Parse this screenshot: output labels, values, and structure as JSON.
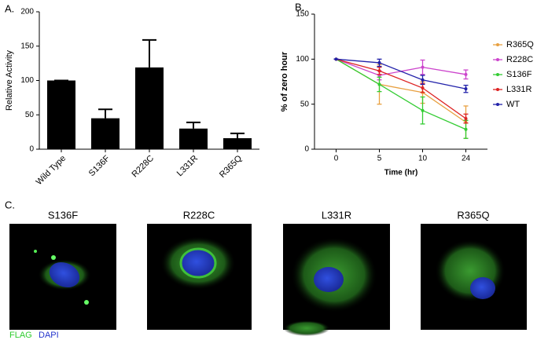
{
  "chart_data": [
    {
      "type": "bar",
      "label": "A.",
      "ylabel": "Relative Activity",
      "categories": [
        "Wild Type",
        "S136F",
        "R228C",
        "L331R",
        "R365Q"
      ],
      "values": [
        100,
        45,
        119,
        30,
        16
      ],
      "errors": [
        0,
        13,
        40,
        9,
        7
      ],
      "color": "#000000",
      "ylim": [
        0,
        200
      ],
      "yticks": [
        0,
        50,
        100,
        150,
        200
      ]
    },
    {
      "type": "line",
      "label": "B.",
      "xlabel": "Time (hr)",
      "ylabel": "% of zero hour",
      "categories": [
        "0",
        "5",
        "10",
        "24"
      ],
      "ylim": [
        0,
        150
      ],
      "yticks": [
        0,
        50,
        100,
        150
      ],
      "legend": "right",
      "series": [
        {
          "name": "R365Q",
          "color": "#e8a040",
          "values": [
            100,
            72,
            63,
            30
          ],
          "errors": [
            0,
            22,
            12,
            18
          ]
        },
        {
          "name": "R228C",
          "color": "#cc44cc",
          "values": [
            100,
            82,
            91,
            83
          ],
          "errors": [
            0,
            5,
            8,
            5
          ]
        },
        {
          "name": "S136F",
          "color": "#33cc33",
          "values": [
            100,
            72,
            43,
            22
          ],
          "errors": [
            0,
            8,
            15,
            10
          ]
        },
        {
          "name": "L331R",
          "color": "#dd2222",
          "values": [
            100,
            87,
            68,
            34
          ],
          "errors": [
            0,
            4,
            5,
            5
          ]
        },
        {
          "name": "WT",
          "color": "#2222aa",
          "values": [
            100,
            96,
            77,
            67
          ],
          "errors": [
            0,
            4,
            5,
            4
          ]
        }
      ]
    }
  ],
  "panel_c": {
    "label": "C.",
    "images": [
      "S136F",
      "R228C",
      "L331R",
      "R365Q"
    ],
    "stains": [
      "FLAG",
      "DAPI"
    ]
  }
}
